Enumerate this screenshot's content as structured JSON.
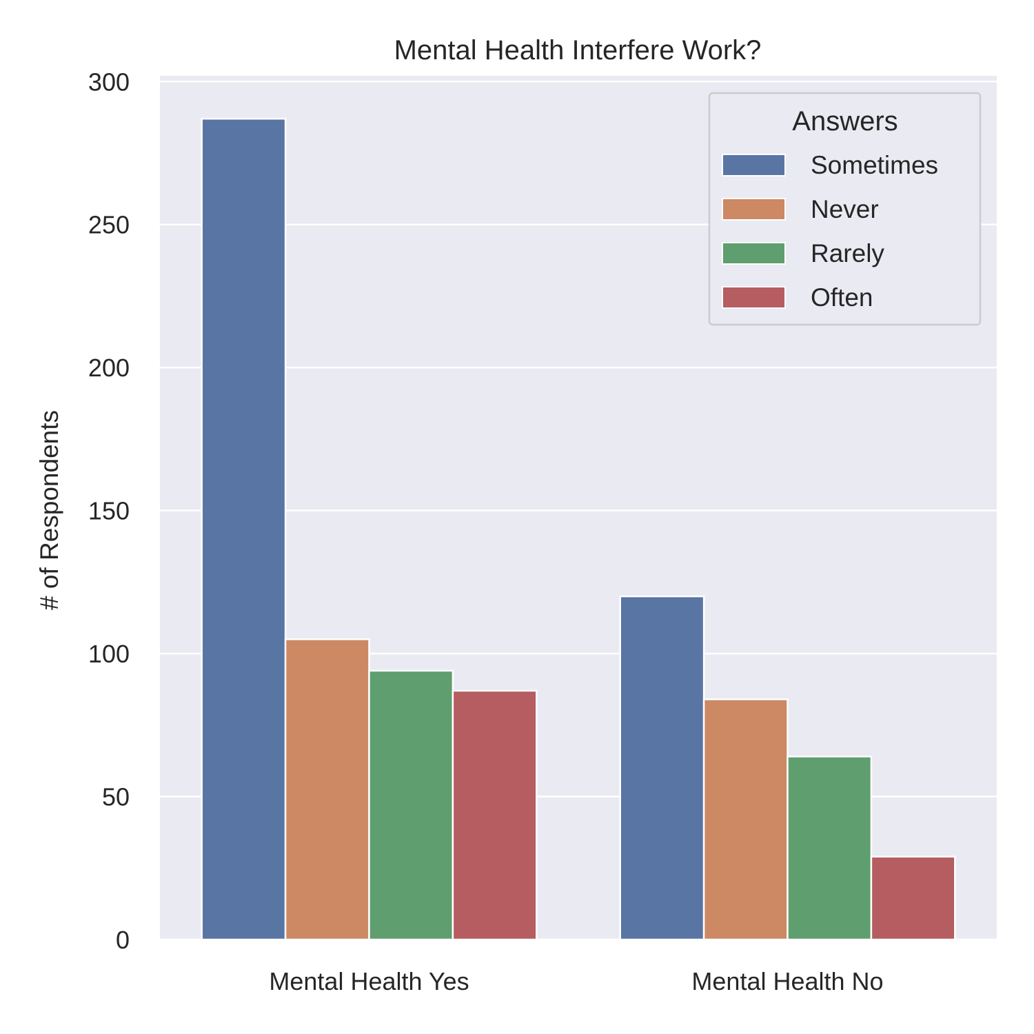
{
  "chart_data": {
    "type": "bar",
    "title": "Mental Health Interfere Work?",
    "xlabel": "",
    "ylabel": "# of Respondents",
    "categories": [
      "Mental Health Yes",
      "Mental Health No"
    ],
    "series": [
      {
        "name": "Sometimes",
        "values": [
          287,
          120
        ],
        "color": "#5975a4"
      },
      {
        "name": "Never",
        "values": [
          105,
          84
        ],
        "color": "#cc8963"
      },
      {
        "name": "Rarely",
        "values": [
          94,
          64
        ],
        "color": "#5f9e6e"
      },
      {
        "name": "Often",
        "values": [
          87,
          29
        ],
        "color": "#b55d60"
      }
    ],
    "ylim": [
      0,
      302
    ],
    "yticks": [
      0,
      50,
      100,
      150,
      200,
      250,
      300
    ],
    "grid": true,
    "legend": {
      "title": "Answers",
      "placement": "top-right"
    },
    "colors": {
      "background": "#eaeaf2",
      "grid": "#ffffff"
    }
  }
}
